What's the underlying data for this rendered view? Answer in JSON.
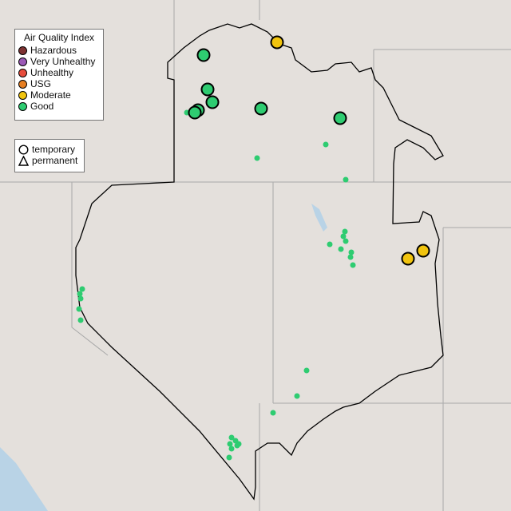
{
  "legend": {
    "title": "Air Quality Index",
    "categories": [
      {
        "label": "Hazardous",
        "color": "#7e3232"
      },
      {
        "label": "Very Unhealthy",
        "color": "#9b59b6"
      },
      {
        "label": "Unhealthy",
        "color": "#e74c3c"
      },
      {
        "label": "USG",
        "color": "#e67e22"
      },
      {
        "label": "Moderate",
        "color": "#f1c40f"
      },
      {
        "label": "Good",
        "color": "#2ecc71"
      }
    ]
  },
  "type_legend": {
    "items": [
      {
        "label": "temporary",
        "icon": "circle-icon"
      },
      {
        "label": "permanent",
        "icon": "triangle-icon"
      }
    ]
  },
  "colors": {
    "land": "#e4e0dc",
    "water": "#b9d3e6",
    "boundary": "#000000",
    "state_lines": "#a9a9a9"
  }
}
